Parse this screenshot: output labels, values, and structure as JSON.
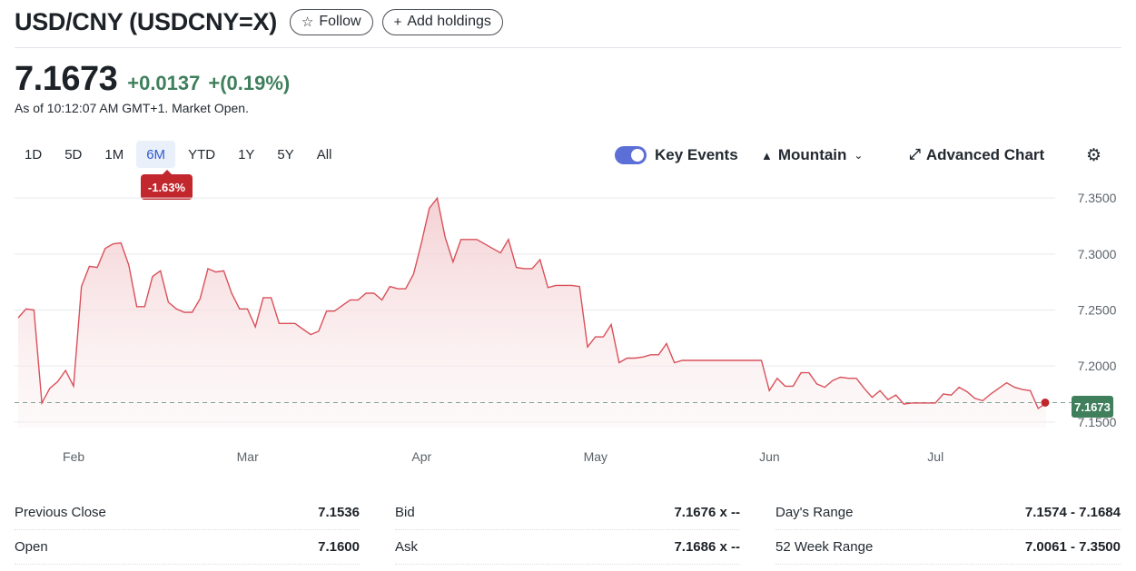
{
  "header": {
    "title": "USD/CNY (USDCNY=X)",
    "follow_label": "Follow",
    "follow_icon": "star-outline-icon",
    "add_holdings_label": "Add holdings",
    "add_icon": "plus-icon"
  },
  "quote": {
    "price": "7.1673",
    "change": "+0.0137",
    "change_percent": "+(0.19%)",
    "as_of": "As of 10:12:07 AM GMT+1. Market Open.",
    "change_color": "#3f7f5c"
  },
  "ranges": [
    "1D",
    "5D",
    "1M",
    "6M",
    "YTD",
    "1Y",
    "5Y",
    "All"
  ],
  "selected_range": "6M",
  "range_performance": "-1.63%",
  "controls": {
    "key_events_label": "Key Events",
    "key_events_on": true,
    "chart_type_label": "Mountain",
    "advanced_chart_label": "Advanced Chart",
    "settings_icon": "gear-icon"
  },
  "chart_data": {
    "type": "area",
    "title": "",
    "xlabel": "",
    "ylabel": "",
    "x_tick_labels": [
      "Feb",
      "Mar",
      "Apr",
      "May",
      "Jun",
      "Jul"
    ],
    "y_tick_labels": [
      "7.3500",
      "7.3000",
      "7.2500",
      "7.2000",
      "7.1500"
    ],
    "ylim": [
      7.145,
      7.355
    ],
    "line_color": "#d9505a",
    "fill_color": "#f4d6d8",
    "previous_close": 7.1536,
    "last_price_label": "7.1673",
    "grid": true,
    "series": [
      {
        "values": [
          7.243,
          7.251,
          7.25,
          7.167,
          7.18,
          7.186,
          7.196,
          7.182,
          7.271,
          7.289,
          7.288,
          7.305,
          7.309,
          7.31,
          7.29,
          7.253,
          7.253,
          7.28,
          7.285,
          7.257,
          7.251,
          7.248,
          7.248,
          7.26,
          7.287,
          7.284,
          7.285,
          7.265,
          7.251,
          7.251,
          7.235,
          7.261,
          7.261,
          7.238,
          7.238,
          7.238,
          7.233,
          7.228,
          7.231,
          7.249,
          7.249,
          7.254,
          7.259,
          7.259,
          7.265,
          7.265,
          7.259,
          7.271,
          7.269,
          7.269,
          7.282,
          7.31,
          7.341,
          7.35,
          7.315,
          7.293,
          7.313,
          7.313,
          7.313,
          7.309,
          7.305,
          7.301,
          7.313,
          7.288,
          7.287,
          7.287,
          7.295,
          7.27,
          7.272,
          7.272,
          7.272,
          7.271,
          7.217,
          7.226,
          7.226,
          7.237,
          7.203,
          7.207,
          7.207,
          7.208,
          7.21,
          7.21,
          7.22,
          7.203,
          7.205,
          7.205,
          7.205,
          7.205,
          7.205,
          7.205,
          7.205,
          7.205,
          7.205,
          7.205,
          7.205,
          7.178,
          7.189,
          7.182,
          7.182,
          7.194,
          7.194,
          7.184,
          7.181,
          7.187,
          7.19,
          7.189,
          7.189,
          7.18,
          7.172,
          7.178,
          7.17,
          7.174,
          7.166,
          7.167,
          7.167,
          7.167,
          7.167,
          7.175,
          7.174,
          7.181,
          7.177,
          7.171,
          7.169,
          7.175,
          7.18,
          7.185,
          7.181,
          7.179,
          7.178,
          7.162,
          7.167
        ]
      }
    ]
  },
  "stats": [
    {
      "label": "Previous Close",
      "value": "7.1536"
    },
    {
      "label": "Open",
      "value": "7.1600"
    },
    {
      "label": "Bid",
      "value": "7.1676 x --"
    },
    {
      "label": "Ask",
      "value": "7.1686 x --"
    },
    {
      "label": "Day's Range",
      "value": "7.1574 - 7.1684"
    },
    {
      "label": "52 Week Range",
      "value": "7.0061 - 7.3500"
    }
  ]
}
